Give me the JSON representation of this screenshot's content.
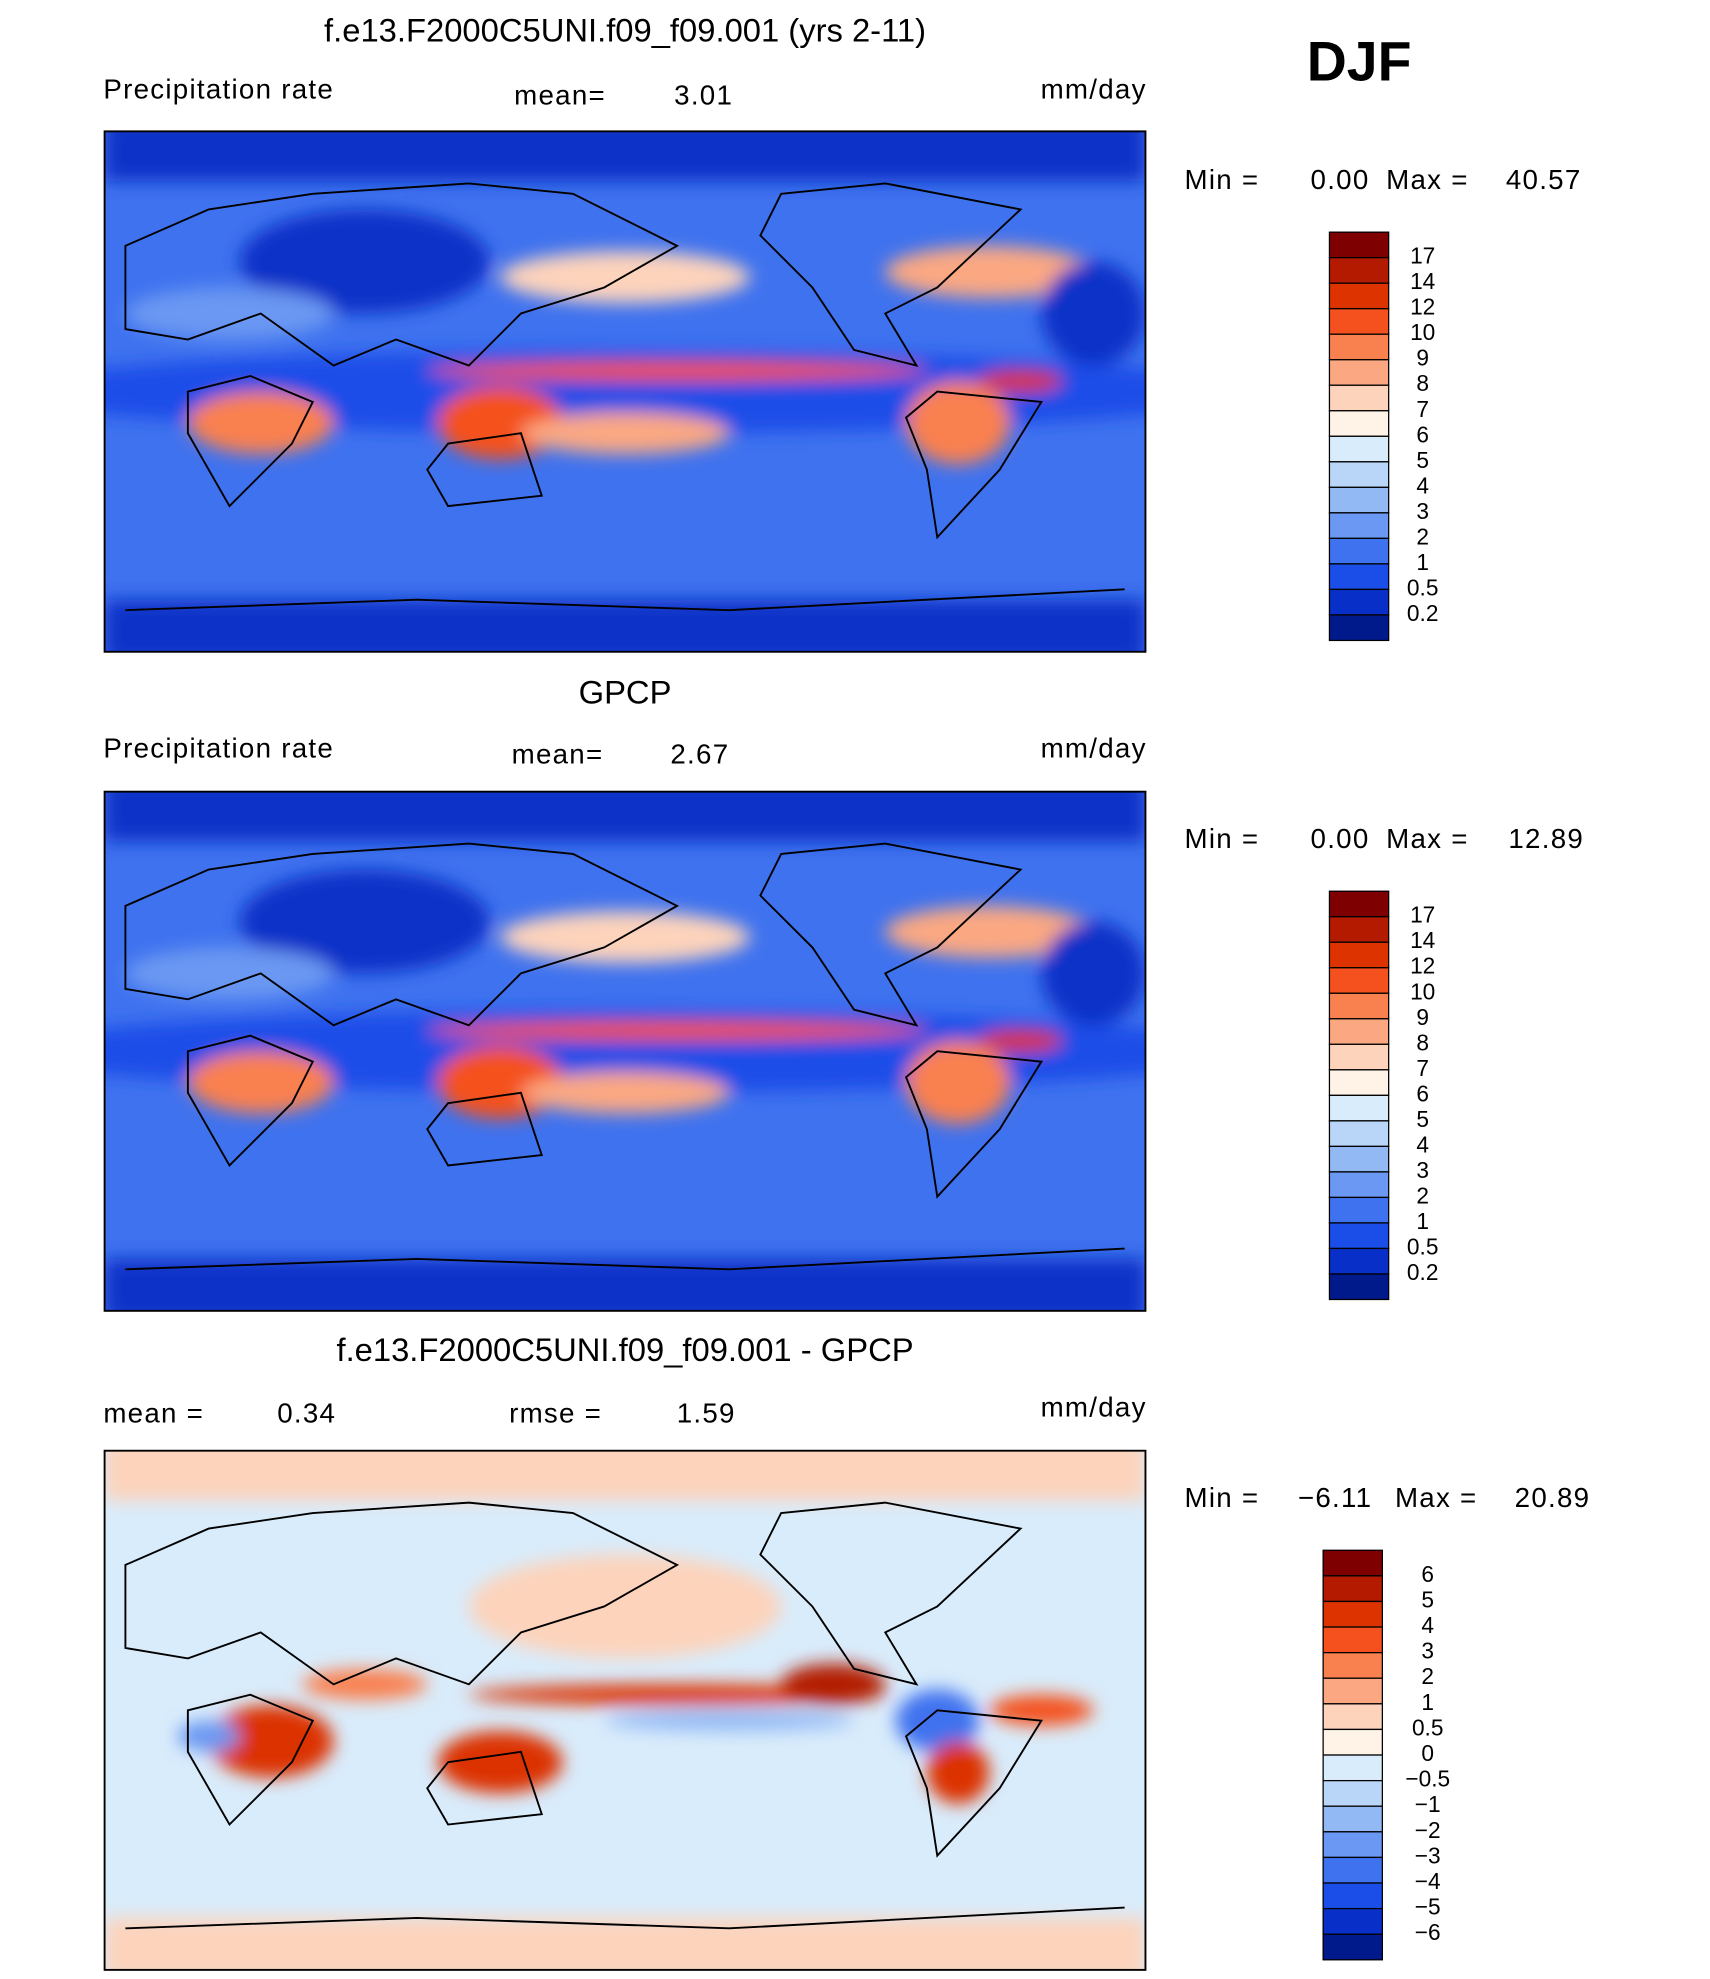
{
  "season": "DJF",
  "panels": [
    {
      "title": "f.e13.F2000C5UNI.f09_f09.001 (yrs 2-11)",
      "field": "Precipitation rate",
      "mean_label": "mean=",
      "mean": "3.01",
      "units": "mm/day",
      "min_label": "Min =",
      "min": "0.00",
      "max_label": "Max =",
      "max": "40.57",
      "colorbar": {
        "labels": [
          "17",
          "14",
          "12",
          "10",
          "9",
          "8",
          "7",
          "6",
          "5",
          "4",
          "3",
          "2",
          "1",
          "0.5",
          "0.2"
        ],
        "colors": [
          "#7f0000",
          "#b31a00",
          "#dc3300",
          "#f4511e",
          "#f9804f",
          "#fba882",
          "#fdd3bb",
          "#fff2e6",
          "#d9ecfb",
          "#b9d6f8",
          "#93b9f5",
          "#6a98f2",
          "#3f72ef",
          "#1b4ee8",
          "#0830c8",
          "#001a8c"
        ]
      }
    },
    {
      "title": "GPCP",
      "field": "Precipitation rate",
      "mean_label": "mean=",
      "mean": "2.67",
      "units": "mm/day",
      "min_label": "Min =",
      "min": "0.00",
      "max_label": "Max =",
      "max": "12.89",
      "colorbar": {
        "labels": [
          "17",
          "14",
          "12",
          "10",
          "9",
          "8",
          "7",
          "6",
          "5",
          "4",
          "3",
          "2",
          "1",
          "0.5",
          "0.2"
        ],
        "colors": [
          "#7f0000",
          "#b31a00",
          "#dc3300",
          "#f4511e",
          "#f9804f",
          "#fba882",
          "#fdd3bb",
          "#fff2e6",
          "#d9ecfb",
          "#b9d6f8",
          "#93b9f5",
          "#6a98f2",
          "#3f72ef",
          "#1b4ee8",
          "#0830c8",
          "#001a8c"
        ]
      }
    },
    {
      "title": "f.e13.F2000C5UNI.f09_f09.001 - GPCP",
      "mean_label": "mean =",
      "mean": "0.34",
      "rmse_label": "rmse =",
      "rmse": "1.59",
      "units": "mm/day",
      "min_label": "Min =",
      "min": "−6.11",
      "max_label": "Max =",
      "max": "20.89",
      "colorbar": {
        "labels": [
          "6",
          "5",
          "4",
          "3",
          "2",
          "1",
          "0.5",
          "0",
          "−0.5",
          "−1",
          "−2",
          "−3",
          "−4",
          "−5",
          "−6"
        ],
        "colors": [
          "#7f0000",
          "#b31a00",
          "#dc3300",
          "#f4511e",
          "#f9804f",
          "#fba882",
          "#fdd3bb",
          "#fff2e6",
          "#d9ecfb",
          "#b9d6f8",
          "#93b9f5",
          "#6a98f2",
          "#3f72ef",
          "#1b4ee8",
          "#0830c8",
          "#001a8c"
        ]
      }
    }
  ]
}
